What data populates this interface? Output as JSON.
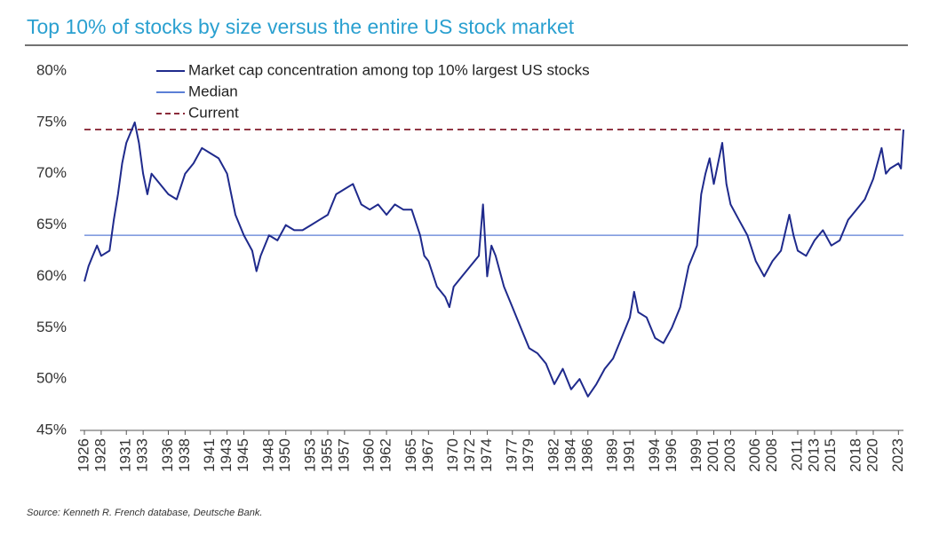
{
  "chart_data": {
    "type": "line",
    "title": "Top 10% of stocks by size versus the entire US stock market",
    "source": "Source: Kenneth R. French database, Deutsche Bank.",
    "x": [
      1926,
      1926.5,
      1927,
      1927.5,
      1928,
      1929,
      1929.5,
      1930,
      1930.5,
      1931,
      1931.5,
      1932,
      1932.5,
      1933,
      1933.5,
      1934,
      1935,
      1936,
      1937,
      1938,
      1939,
      1940,
      1941,
      1942,
      1943,
      1943.5,
      1944,
      1945,
      1946,
      1946.5,
      1947,
      1948,
      1949,
      1950,
      1951,
      1952,
      1953,
      1954,
      1955,
      1956,
      1957,
      1958,
      1959,
      1960,
      1961,
      1962,
      1963,
      1964,
      1965,
      1966,
      1966.5,
      1967,
      1968,
      1969,
      1969.5,
      1970,
      1971,
      1972,
      1973,
      1973.5,
      1974,
      1974.5,
      1975,
      1976,
      1977,
      1978,
      1979,
      1980,
      1981,
      1982,
      1983,
      1984,
      1985,
      1986,
      1987,
      1988,
      1989,
      1990,
      1991,
      1991.5,
      1992,
      1993,
      1994,
      1995,
      1996,
      1997,
      1998,
      1999,
      1999.5,
      2000,
      2000.5,
      2001,
      2002,
      2002.5,
      2003,
      2004,
      2005,
      2006,
      2007,
      2008,
      2009,
      2010,
      2010.5,
      2011,
      2012,
      2013,
      2014,
      2015,
      2016,
      2017,
      2018,
      2019,
      2020,
      2021,
      2021.5,
      2022,
      2023,
      2023.3,
      2023.6
    ],
    "series": [
      {
        "name": "Market cap concentration among top 10% largest US stocks",
        "color": "#1f2a8c",
        "values": [
          59.5,
          61,
          62,
          63,
          62,
          62.5,
          65.5,
          68,
          71,
          73,
          74,
          75,
          73,
          70,
          68,
          70,
          69,
          68,
          67.5,
          70,
          71,
          72.5,
          72,
          71.5,
          70,
          68,
          66,
          64,
          62.5,
          60.5,
          62,
          64,
          63.5,
          65,
          64.5,
          64.5,
          65,
          65.5,
          66,
          68,
          68.5,
          69,
          67,
          66.5,
          67,
          66,
          67,
          66.5,
          66.5,
          64,
          62,
          61.5,
          59,
          58,
          57,
          59,
          60,
          61,
          62,
          67,
          60,
          63,
          62,
          59,
          57,
          55,
          53,
          52.5,
          51.5,
          49.5,
          51,
          49,
          50,
          48.3,
          49.5,
          51,
          52,
          54,
          56,
          58.5,
          56.5,
          56,
          54,
          53.5,
          55,
          57,
          61,
          63,
          68,
          70,
          71.5,
          69,
          73,
          69,
          67,
          65.5,
          64,
          61.5,
          60,
          61.5,
          62.5,
          66,
          64,
          62.5,
          62,
          63.5,
          64.5,
          63,
          63.5,
          65.5,
          66.5,
          67.5,
          69.5,
          72.5,
          70,
          70.5,
          71,
          70.5,
          74.3
        ]
      }
    ],
    "hlines": [
      {
        "name": "Median",
        "value": 64,
        "color": "#5b7fd6",
        "style": "solid"
      },
      {
        "name": "Current",
        "value": 74.3,
        "color": "#8b2b3a",
        "style": "dashed"
      }
    ],
    "xlim": [
      1926,
      2023.6
    ],
    "xticks": [
      1926,
      1928,
      1931,
      1933,
      1936,
      1938,
      1941,
      1943,
      1945,
      1948,
      1950,
      1953,
      1955,
      1957,
      1960,
      1962,
      1965,
      1967,
      1970,
      1972,
      1974,
      1977,
      1979,
      1982,
      1984,
      1986,
      1989,
      1991,
      1994,
      1996,
      1999,
      2001,
      2003,
      2006,
      2008,
      2011,
      2013,
      2015,
      2018,
      2020,
      2023
    ],
    "ylim": [
      45,
      80
    ],
    "yticks": [
      {
        "value": 45,
        "label": "45%"
      },
      {
        "value": 50,
        "label": "50%"
      },
      {
        "value": 55,
        "label": "55%"
      },
      {
        "value": 60,
        "label": "60%"
      },
      {
        "value": 65,
        "label": "65%"
      },
      {
        "value": 70,
        "label": "70%"
      },
      {
        "value": 75,
        "label": "75%"
      },
      {
        "value": 80,
        "label": "80%"
      }
    ]
  }
}
